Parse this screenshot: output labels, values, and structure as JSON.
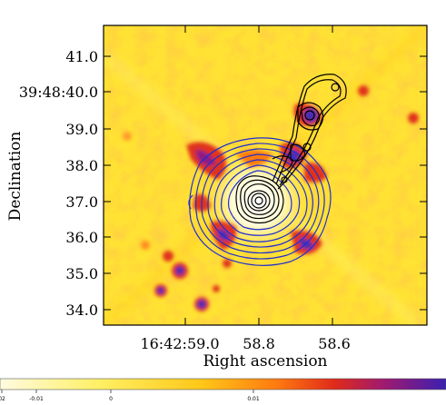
{
  "figure": {
    "ylabel": "Declination",
    "xlabel": "Right ascension",
    "yticks": [
      "41.0",
      "39:48:40.0",
      "39.0",
      "38.0",
      "37.0",
      "36.0",
      "35.0",
      "34.0"
    ],
    "xticks": [
      "16:42:59.0",
      "58.8",
      "58.6"
    ],
    "colorbar_ticks": [
      "02",
      "-0.01",
      "0",
      "0.01"
    ],
    "colors": {
      "map_background": "#ffe233",
      "bright_core": "#fffbd6",
      "emission_red": "#e0301a",
      "emission_magenta": "#8a1f86",
      "emission_purple": "#4a2fb0",
      "contour_blue": "#1f2fd0",
      "contour_black": "#000000"
    }
  }
}
